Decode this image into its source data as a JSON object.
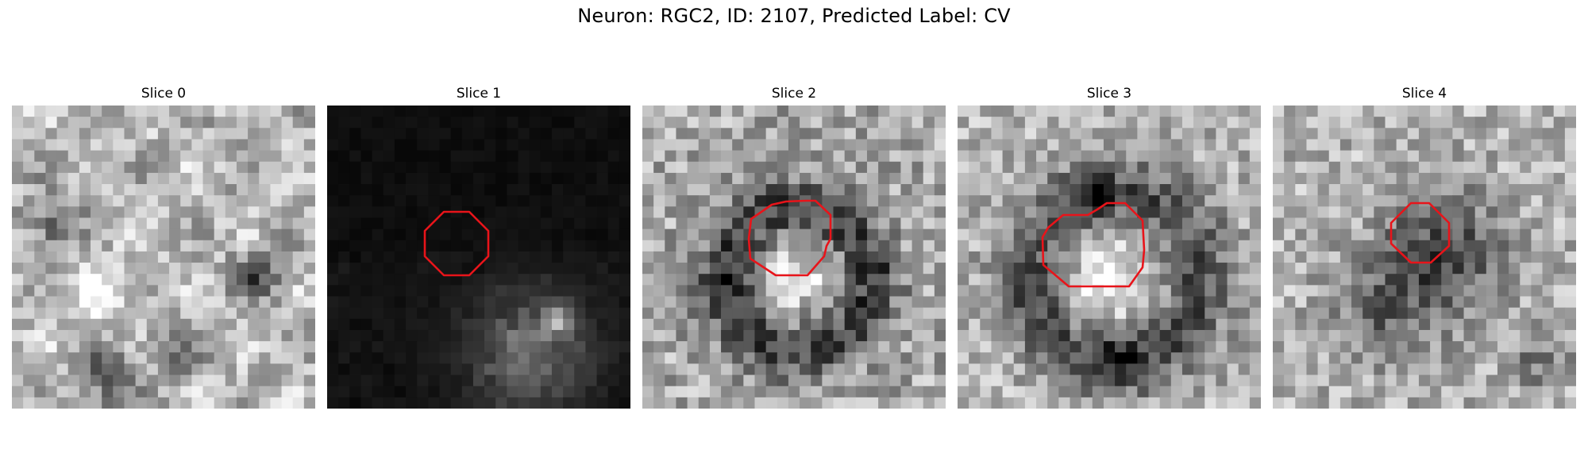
{
  "figure": {
    "title": "Neuron: RGC2, ID: 2107, Predicted Label: CV"
  },
  "panels": [
    {
      "title": "Slice 0"
    },
    {
      "title": "Slice 1"
    },
    {
      "title": "Slice 2"
    },
    {
      "title": "Slice 3"
    },
    {
      "title": "Slice 4"
    }
  ],
  "colors": {
    "roi_outline": "#e8141a",
    "background": "#ffffff"
  }
}
